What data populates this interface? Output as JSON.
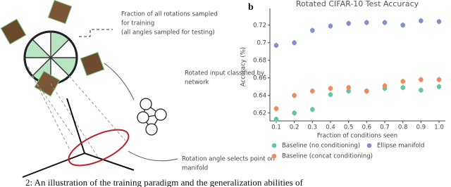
{
  "diagram": {
    "sampling_note": [
      "Fraction of all rotations sampled",
      "for training",
      "(all angles sampled for testing)"
    ],
    "network_note": [
      "Rotated input classified by",
      "network"
    ],
    "manifold_note": [
      "Rotation angle selects point on",
      "manifold"
    ]
  },
  "panel_label": "b",
  "caption": "2:  An illustration of the training paradigm and the generalization abilities of",
  "chart_data": {
    "type": "scatter",
    "title": "Rotated CIFAR-10 Test Accuracy",
    "x_label": "Fraction of conditions seen",
    "y_label": "Accuracy (%)",
    "x": [
      0.1,
      0.2,
      0.3,
      0.4,
      0.5,
      0.6,
      0.7,
      0.8,
      0.9,
      1.0
    ],
    "xlim": [
      0.065,
      1.035
    ],
    "xticks": [
      0.1,
      0.2,
      0.3,
      0.4,
      0.5,
      0.6,
      0.7,
      0.8,
      0.9,
      {
        "value": 1.0,
        "label": "1.0"
      }
    ],
    "ylim": [
      0.611,
      0.739
    ],
    "yticks": [
      0.62,
      0.64,
      0.66,
      0.68,
      0.7,
      0.72
    ],
    "series": [
      {
        "name": "Baseline (no conditioning)",
        "color": "#5ec9a2",
        "values": [
          0.613,
          0.62,
          0.624,
          0.641,
          0.645,
          0.645,
          0.648,
          0.649,
          0.646,
          0.65
        ],
        "errors": [
          0.003,
          0.003,
          0.003,
          0.003,
          0.003,
          0.003,
          0.003,
          0.003,
          0.003,
          0.003
        ]
      },
      {
        "name": "Ellipse manifold",
        "color": "#8391c8",
        "values": [
          0.697,
          0.7,
          0.714,
          0.719,
          0.722,
          0.723,
          0.723,
          0.72,
          0.725,
          0.724
        ],
        "errors": [
          0.003,
          0.003,
          0.003,
          0.003,
          0.003,
          0.003,
          0.003,
          0.003,
          0.003,
          0.003
        ]
      },
      {
        "name": "Baseline (concat conditioning)",
        "color": "#f08a5a",
        "values": [
          0.625,
          0.64,
          0.645,
          0.648,
          0.649,
          0.645,
          0.651,
          0.656,
          0.658,
          0.658
        ],
        "errors": [
          0.003,
          0.003,
          0.003,
          0.003,
          0.003,
          0.003,
          0.003,
          0.003,
          0.003,
          0.003
        ]
      }
    ]
  }
}
